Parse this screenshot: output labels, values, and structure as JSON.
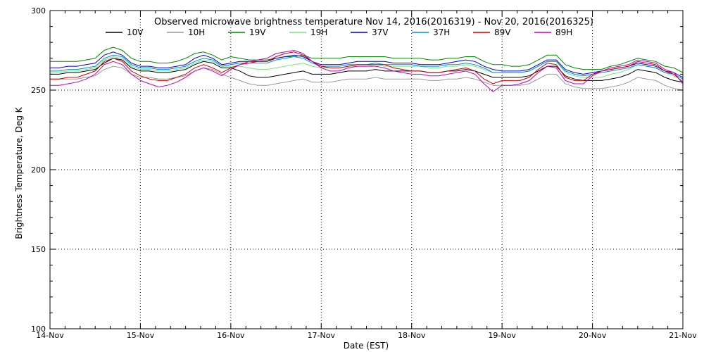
{
  "chart_data": {
    "type": "line",
    "title": "Observed microwave brightness temperature Nov 14, 2016(2016319) - Nov 20, 2016(2016325)",
    "xlabel": "Date (EST)",
    "ylabel": "Brightness Temperature, Deg K",
    "ylim": [
      100,
      300
    ],
    "yticks": [
      "100",
      "150",
      "200",
      "250",
      "300"
    ],
    "xlim": [
      0,
      7
    ],
    "xticks": [
      "14-Nov",
      "15-Nov",
      "16-Nov",
      "17-Nov",
      "18-Nov",
      "19-Nov",
      "20-Nov",
      "21-Nov"
    ],
    "grid": true,
    "legend_position": "top",
    "x": [
      0.0,
      0.1,
      0.2,
      0.3,
      0.4,
      0.5,
      0.6,
      0.7,
      0.8,
      0.9,
      1.0,
      1.1,
      1.2,
      1.3,
      1.4,
      1.5,
      1.6,
      1.7,
      1.8,
      1.9,
      2.0,
      2.1,
      2.2,
      2.3,
      2.4,
      2.5,
      2.6,
      2.7,
      2.8,
      2.9,
      3.0,
      3.1,
      3.2,
      3.3,
      3.4,
      3.5,
      3.6,
      3.7,
      3.8,
      3.9,
      4.0,
      4.1,
      4.2,
      4.3,
      4.4,
      4.5,
      4.6,
      4.7,
      4.8,
      4.9,
      5.0,
      5.1,
      5.2,
      5.3,
      5.4,
      5.5,
      5.6,
      5.7,
      5.8,
      5.9,
      6.0,
      6.1,
      6.2,
      6.3,
      6.4,
      6.5,
      6.6,
      6.7,
      6.8,
      6.9,
      7.0
    ],
    "series": [
      {
        "name": "10V",
        "color": "#000000",
        "values": [
          260,
          260,
          261,
          261,
          262,
          263,
          267,
          270,
          269,
          264,
          262,
          262,
          261,
          261,
          262,
          263,
          266,
          268,
          267,
          264,
          264,
          262,
          259,
          258,
          258,
          259,
          260,
          261,
          262,
          260,
          260,
          260,
          261,
          262,
          262,
          262,
          263,
          262,
          262,
          262,
          262,
          262,
          261,
          261,
          262,
          262,
          263,
          262,
          260,
          258,
          258,
          258,
          258,
          259,
          262,
          265,
          265,
          259,
          257,
          256,
          256,
          256,
          257,
          258,
          260,
          263,
          262,
          261,
          258,
          256,
          255
        ]
      },
      {
        "name": "10H",
        "color": "#999999",
        "values": [
          257,
          257,
          257,
          257,
          258,
          259,
          263,
          265,
          264,
          260,
          258,
          258,
          257,
          257,
          258,
          259,
          262,
          264,
          263,
          260,
          258,
          256,
          254,
          253,
          253,
          254,
          255,
          256,
          257,
          255,
          255,
          255,
          256,
          257,
          257,
          257,
          258,
          257,
          257,
          257,
          257,
          257,
          256,
          256,
          257,
          257,
          258,
          257,
          255,
          253,
          253,
          253,
          253,
          254,
          257,
          260,
          260,
          254,
          252,
          251,
          251,
          251,
          252,
          253,
          255,
          258,
          257,
          256,
          253,
          251,
          250
        ]
      },
      {
        "name": "19V",
        "color": "#008800",
        "values": [
          268,
          268,
          268,
          268,
          269,
          270,
          275,
          277,
          275,
          270,
          268,
          268,
          267,
          267,
          268,
          270,
          273,
          274,
          272,
          269,
          271,
          270,
          269,
          269,
          269,
          270,
          271,
          271,
          272,
          270,
          270,
          270,
          270,
          271,
          271,
          271,
          271,
          271,
          270,
          270,
          270,
          270,
          269,
          269,
          270,
          270,
          271,
          271,
          268,
          266,
          266,
          265,
          265,
          266,
          269,
          272,
          272,
          266,
          264,
          263,
          263,
          263,
          265,
          266,
          268,
          270,
          269,
          268,
          265,
          264,
          261
        ]
      },
      {
        "name": "19H",
        "color": "#7fe07f",
        "values": [
          261,
          261,
          262,
          262,
          263,
          264,
          269,
          271,
          270,
          265,
          263,
          263,
          262,
          262,
          263,
          264,
          267,
          269,
          268,
          265,
          265,
          265,
          264,
          263,
          263,
          264,
          265,
          266,
          267,
          265,
          264,
          264,
          264,
          265,
          265,
          265,
          266,
          265,
          265,
          265,
          265,
          265,
          264,
          264,
          265,
          265,
          266,
          265,
          263,
          261,
          261,
          261,
          261,
          262,
          265,
          268,
          268,
          261,
          259,
          258,
          258,
          258,
          260,
          261,
          263,
          266,
          265,
          264,
          261,
          259,
          256
        ]
      },
      {
        "name": "37V",
        "color": "#0000cc",
        "values": [
          264,
          264,
          265,
          265,
          266,
          267,
          272,
          274,
          272,
          267,
          265,
          265,
          264,
          264,
          265,
          266,
          270,
          272,
          270,
          266,
          267,
          268,
          268,
          268,
          268,
          270,
          271,
          272,
          271,
          268,
          266,
          266,
          266,
          267,
          268,
          268,
          268,
          268,
          267,
          267,
          267,
          266,
          266,
          266,
          267,
          268,
          269,
          268,
          265,
          263,
          262,
          262,
          262,
          263,
          266,
          269,
          269,
          263,
          261,
          260,
          261,
          262,
          263,
          264,
          265,
          267,
          266,
          265,
          262,
          261,
          258
        ]
      },
      {
        "name": "37H",
        "color": "#0090c0",
        "values": [
          262,
          262,
          263,
          263,
          264,
          265,
          270,
          272,
          271,
          266,
          264,
          264,
          263,
          263,
          264,
          265,
          268,
          270,
          269,
          265,
          266,
          267,
          267,
          267,
          267,
          269,
          270,
          271,
          270,
          267,
          265,
          265,
          265,
          266,
          266,
          266,
          267,
          266,
          266,
          266,
          266,
          265,
          265,
          265,
          266,
          266,
          267,
          266,
          264,
          261,
          261,
          261,
          261,
          262,
          265,
          268,
          268,
          262,
          260,
          259,
          260,
          261,
          262,
          263,
          264,
          266,
          265,
          264,
          261,
          260,
          257
        ]
      },
      {
        "name": "89V",
        "color": "#cc0000",
        "values": [
          257,
          257,
          258,
          258,
          260,
          262,
          268,
          270,
          268,
          262,
          259,
          257,
          256,
          256,
          258,
          260,
          264,
          266,
          264,
          261,
          264,
          266,
          267,
          268,
          268,
          271,
          273,
          274,
          272,
          268,
          265,
          264,
          264,
          265,
          266,
          266,
          266,
          266,
          264,
          263,
          262,
          262,
          261,
          261,
          262,
          263,
          264,
          262,
          257,
          254,
          256,
          256,
          256,
          258,
          263,
          267,
          266,
          258,
          256,
          256,
          260,
          262,
          263,
          264,
          265,
          268,
          267,
          266,
          262,
          260,
          255
        ]
      },
      {
        "name": "89H",
        "color": "#c000c0",
        "values": [
          253,
          253,
          254,
          255,
          257,
          260,
          266,
          268,
          266,
          260,
          256,
          254,
          252,
          253,
          255,
          258,
          262,
          264,
          262,
          259,
          263,
          266,
          268,
          269,
          270,
          273,
          274,
          275,
          273,
          268,
          264,
          262,
          262,
          264,
          265,
          265,
          265,
          264,
          262,
          261,
          260,
          260,
          259,
          259,
          260,
          261,
          262,
          260,
          254,
          249,
          253,
          253,
          254,
          256,
          261,
          265,
          264,
          256,
          254,
          254,
          259,
          262,
          264,
          265,
          266,
          269,
          268,
          267,
          263,
          261,
          254
        ]
      }
    ]
  }
}
